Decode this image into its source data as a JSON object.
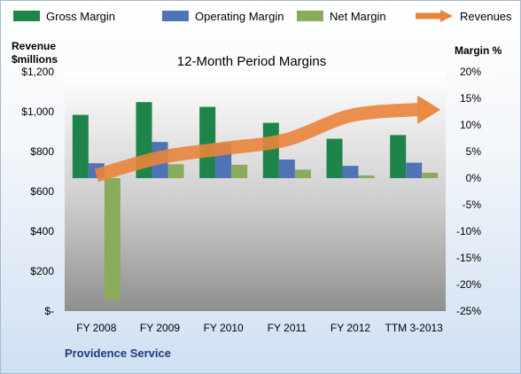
{
  "chart_data": {
    "type": "bar",
    "title": "12-Month Period Margins",
    "categories": [
      "FY 2008",
      "FY 2009",
      "FY 2010",
      "FY 2011",
      "FY 2012",
      "TTM 3-2013"
    ],
    "series": [
      {
        "name": "Gross Margin",
        "axis": "right",
        "type": "bar",
        "color": "#1e8449",
        "values": [
          11.9,
          14.3,
          13.4,
          10.4,
          7.4,
          8.1
        ]
      },
      {
        "name": "Operating Margin",
        "axis": "right",
        "type": "bar",
        "color": "#4f73b6",
        "values": [
          2.8,
          6.8,
          6.5,
          3.5,
          2.3,
          2.9
        ]
      },
      {
        "name": "Net Margin",
        "axis": "right",
        "type": "bar",
        "color": "#8aab5a",
        "values": [
          -22.9,
          2.6,
          2.5,
          1.6,
          0.5,
          1.0
        ]
      },
      {
        "name": "Revenues",
        "axis": "left",
        "type": "arrow",
        "color": "#e9843b",
        "values": [
          680,
          770,
          815,
          860,
          980,
          1010
        ]
      }
    ],
    "left_axis": {
      "title": "Revenue $millions",
      "title_lines": [
        "Revenue",
        "$millions"
      ],
      "min": 0,
      "max": 1200,
      "step": 200,
      "tick_labels": [
        "$-",
        "$200",
        "$400",
        "$600",
        "$800",
        "$1,000",
        "$1,200"
      ]
    },
    "right_axis": {
      "title": "Margin %",
      "min": -25,
      "max": 20,
      "step": 5,
      "tick_labels": [
        "-25%",
        "-20%",
        "-15%",
        "-10%",
        "-5%",
        "0%",
        "5%",
        "10%",
        "15%",
        "20%"
      ]
    },
    "legend_position": "top",
    "grid": false,
    "footer": "Providence Service"
  }
}
